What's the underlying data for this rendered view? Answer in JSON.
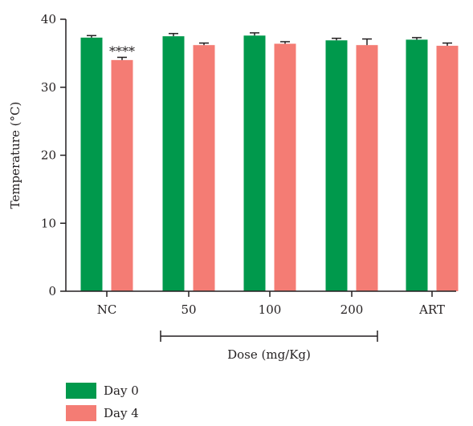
{
  "chart_data": {
    "type": "bar",
    "categories": [
      "NC",
      "50",
      "100",
      "200",
      "ART"
    ],
    "series": [
      {
        "name": "Day 0",
        "color": "#00994c",
        "values": [
          37.3,
          37.5,
          37.6,
          36.9,
          37.0
        ],
        "errors": [
          0.3,
          0.4,
          0.4,
          0.3,
          0.3
        ]
      },
      {
        "name": "Day 4",
        "color": "#f47c74",
        "values": [
          34.0,
          36.2,
          36.4,
          36.2,
          36.1
        ],
        "errors": [
          0.4,
          0.3,
          0.3,
          0.9,
          0.4
        ]
      }
    ],
    "ylabel": "Temperature (°C)",
    "xlabel": "",
    "bracket_label": "Dose (mg/Kg)",
    "ylim": [
      0,
      40
    ],
    "yticks": [
      0,
      10,
      20,
      30,
      40
    ],
    "annotations": [
      {
        "category": "NC",
        "series": "Day 4",
        "text": "****"
      }
    ],
    "grid": false,
    "legend_position": "bottom-left"
  }
}
